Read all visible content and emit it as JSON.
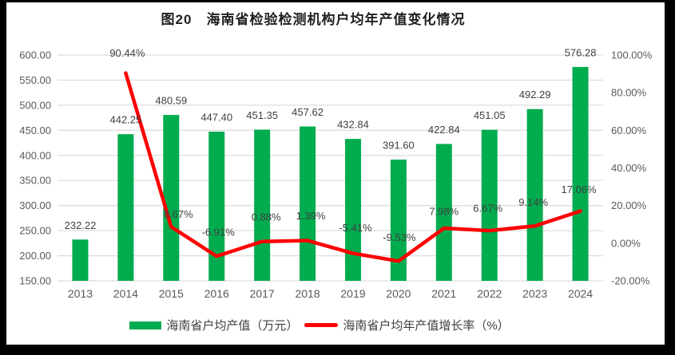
{
  "title": "图20　海南省检验检测机构户均年产值变化情况",
  "chart_data": {
    "type": "combo-bar-line",
    "categories": [
      "2013",
      "2014",
      "2015",
      "2016",
      "2017",
      "2018",
      "2019",
      "2020",
      "2021",
      "2022",
      "2023",
      "2024"
    ],
    "series": [
      {
        "name": "海南省户均产值（万元）",
        "chart_type": "bar",
        "axis": "left",
        "color": "#00AC4E",
        "values": [
          232.22,
          442.25,
          480.59,
          447.4,
          451.35,
          457.62,
          432.84,
          391.6,
          422.84,
          451.05,
          492.29,
          576.28
        ],
        "labels": [
          "232.22",
          "442.25",
          "480.59",
          "447.40",
          "451.35",
          "457.62",
          "432.84",
          "391.60",
          "422.84",
          "451.05",
          "492.29",
          "576.28"
        ]
      },
      {
        "name": "海南省户均年产值增长率（%）",
        "chart_type": "line",
        "axis": "right",
        "color": "#FF0000",
        "values": [
          null,
          90.44,
          8.67,
          -6.91,
          0.88,
          1.39,
          -5.41,
          -9.53,
          7.98,
          6.67,
          9.14,
          17.06
        ],
        "labels": [
          null,
          "90.44%",
          "8.67%",
          "-6.91%",
          "0.88%",
          "1.39%",
          "-5.41%",
          "-9.53%",
          "7.98%",
          "6.67%",
          "9.14%",
          "17.06%"
        ]
      }
    ],
    "left_axis": {
      "min": 150,
      "max": 600,
      "step": 50,
      "tick_labels": [
        "600.00",
        "550.00",
        "500.00",
        "450.00",
        "400.00",
        "350.00",
        "300.00",
        "250.00",
        "200.00",
        "150.00"
      ]
    },
    "right_axis": {
      "min": -20,
      "max": 100,
      "step": 20,
      "tick_labels": [
        "100.00%",
        "80.00%",
        "60.00%",
        "40.00%",
        "20.00%",
        "0.00%",
        "-20.00%"
      ]
    },
    "grid": true,
    "legend_position": "bottom",
    "colors": {
      "grid": "#DEDEDE",
      "axis_text": "#595959",
      "data_label": "#404040",
      "title_text": "#1F1F1F",
      "frame": "#000000",
      "background": "#FFFFFF"
    }
  },
  "legend": {
    "items": [
      {
        "label": "海南省户均产值（万元）",
        "swatch": "bar-swatch"
      },
      {
        "label": "海南省户均年产值增长率（%）",
        "swatch": "line-swatch"
      }
    ]
  }
}
